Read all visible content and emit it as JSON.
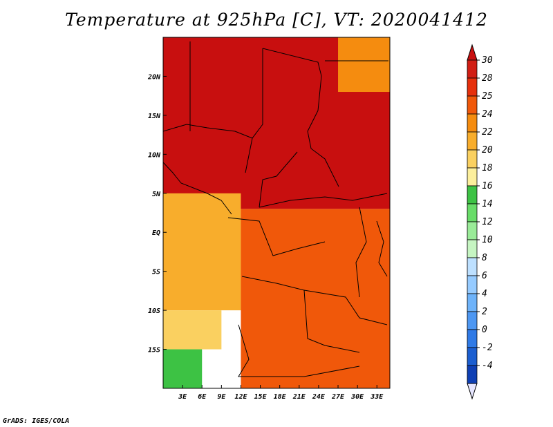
{
  "title": "Temperature at 925hPa [C], VT: 2020041412",
  "footer": "GrADS: IGES/COLA",
  "chart_data": {
    "type": "heatmap",
    "title": "Temperature at 925hPa [C], VT: 2020041412",
    "variable": "Temperature at 925hPa",
    "units": "C",
    "valid_time": "2020041412",
    "lon_range": [
      0,
      35
    ],
    "lat_range": [
      -20,
      25
    ],
    "x_ticks": [
      "3E",
      "6E",
      "9E",
      "12E",
      "15E",
      "18E",
      "21E",
      "24E",
      "27E",
      "30E",
      "33E"
    ],
    "x_tick_values": [
      3,
      6,
      9,
      12,
      15,
      18,
      21,
      24,
      27,
      30,
      33
    ],
    "y_ticks": [
      "20N",
      "15N",
      "10N",
      "5N",
      "EQ",
      "5S",
      "10S",
      "15S"
    ],
    "y_tick_values": [
      20,
      15,
      10,
      5,
      0,
      -5,
      -10,
      -15
    ],
    "colorbar_levels": [
      "30",
      "28",
      "25",
      "24",
      "22",
      "20",
      "18",
      "16",
      "14",
      "12",
      "10",
      "8",
      "6",
      "4",
      "2",
      "0",
      "-2",
      "-4"
    ],
    "colorbar_colors": [
      "#d11e14",
      "#e6300c",
      "#f0580a",
      "#f58c0f",
      "#f8ad2c",
      "#fad060",
      "#fcef9c",
      "#3dc244",
      "#68dc68",
      "#9aeb98",
      "#c6f5c2",
      "#bde0ff",
      "#96cbff",
      "#6eb3fa",
      "#4d97f2",
      "#2f7ae6",
      "#1b5ed0",
      "#0e3fb4"
    ],
    "over_color": "#c80f0f",
    "under_color": "#e6e6ff",
    "regions": [
      {
        "name": "north-hot",
        "value": 30,
        "lon": [
          0,
          35
        ],
        "lat": [
          3,
          25
        ]
      },
      {
        "name": "northeast-warm",
        "value": 24,
        "lon": [
          27,
          35
        ],
        "lat": [
          18,
          25
        ]
      },
      {
        "name": "central-basin",
        "value": 27,
        "lon": [
          12,
          35
        ],
        "lat": [
          -20,
          3
        ]
      },
      {
        "name": "gulf-coast",
        "value": 23,
        "lon": [
          0,
          12
        ],
        "lat": [
          -10,
          5
        ]
      },
      {
        "name": "southwest-cool",
        "value": 20,
        "lon": [
          0,
          9
        ],
        "lat": [
          -15,
          -10
        ]
      },
      {
        "name": "southwest-green",
        "value": 16,
        "lon": [
          0,
          6
        ],
        "lat": [
          -20,
          -15
        ]
      }
    ]
  }
}
